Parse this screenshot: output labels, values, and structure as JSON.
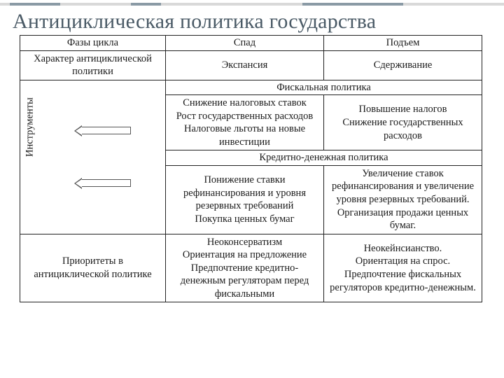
{
  "accent": {
    "bg": "#d9d9d9",
    "seg": "#8a9aa5"
  },
  "title": "Антициклическая политика государства",
  "table": {
    "r1": {
      "c1": "Фазы цикла",
      "c2": "Спад",
      "c3": "Подъем"
    },
    "r2": {
      "c1": "Характер антициклической политики",
      "c2": "Экспансия",
      "c3": "Сдерживание"
    },
    "instr_label": "Инструменты",
    "fiscal": {
      "header": "Фискальная политика",
      "left": "Снижение налоговых ставок\nРост государственных расходов\nНалоговые льготы на новые инвестиции",
      "right": "Повышение налогов\nСнижение государственных расходов"
    },
    "monetary": {
      "header": "Кредитно-денежная политика",
      "left": "Понижение ставки рефинансирования и уровня резервных требований\nПокупка ценных бумаг",
      "right": "Увеличение ставок рефинансирования и увеличение уровня резервных требований.\nОрганизация продажи ценных бумаг."
    },
    "priorities": {
      "c1": "Приоритеты в антициклической политике",
      "c2": "Неоконсерватизм\nОриентация на предложение\nПредпочтение кредитно-денежным регуляторам перед фискальными",
      "c3": "Неокейнсианство.\nОриентация на спрос.\nПредпочтение фискальных регуляторов кредитно-денежным."
    }
  }
}
